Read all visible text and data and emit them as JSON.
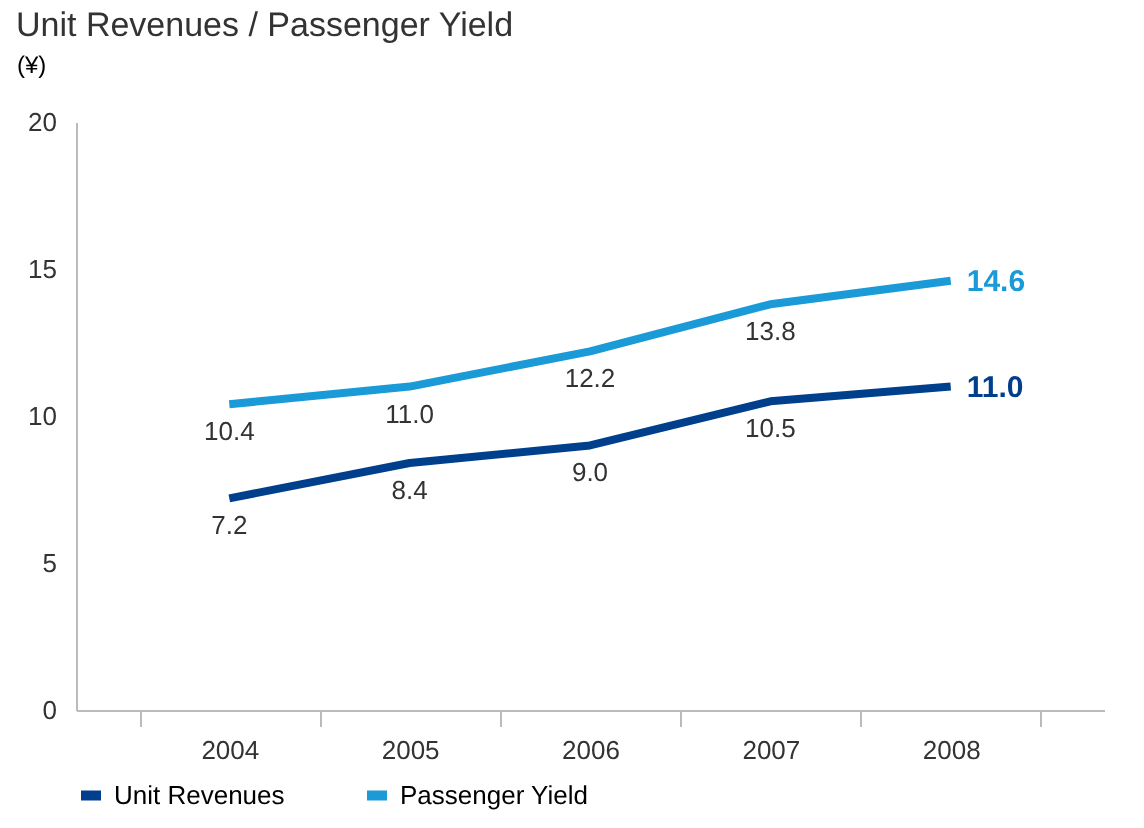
{
  "chart_data": {
    "type": "line",
    "title": "Unit Revenues / Passenger Yield",
    "ylabel": "(¥)",
    "categories": [
      "2004",
      "2005",
      "2006",
      "2007",
      "2008"
    ],
    "series": [
      {
        "name": "Unit Revenues",
        "color": "#003f8c",
        "values": [
          7.2,
          8.4,
          9.0,
          10.5,
          11.0
        ],
        "value_labels": [
          "7.2",
          "8.4",
          "9.0",
          "10.5",
          "11.0"
        ]
      },
      {
        "name": "Passenger Yield",
        "color": "#1a9ad7",
        "values": [
          10.4,
          11.0,
          12.2,
          13.8,
          14.6
        ],
        "value_labels": [
          "10.4",
          "11.0",
          "12.2",
          "13.8",
          "14.6"
        ]
      }
    ],
    "ylim": [
      0,
      20
    ],
    "yticks": [
      0,
      5,
      10,
      15,
      20
    ],
    "grid": false,
    "legend": "bottom left",
    "marker": "none",
    "line_style": "solid"
  }
}
